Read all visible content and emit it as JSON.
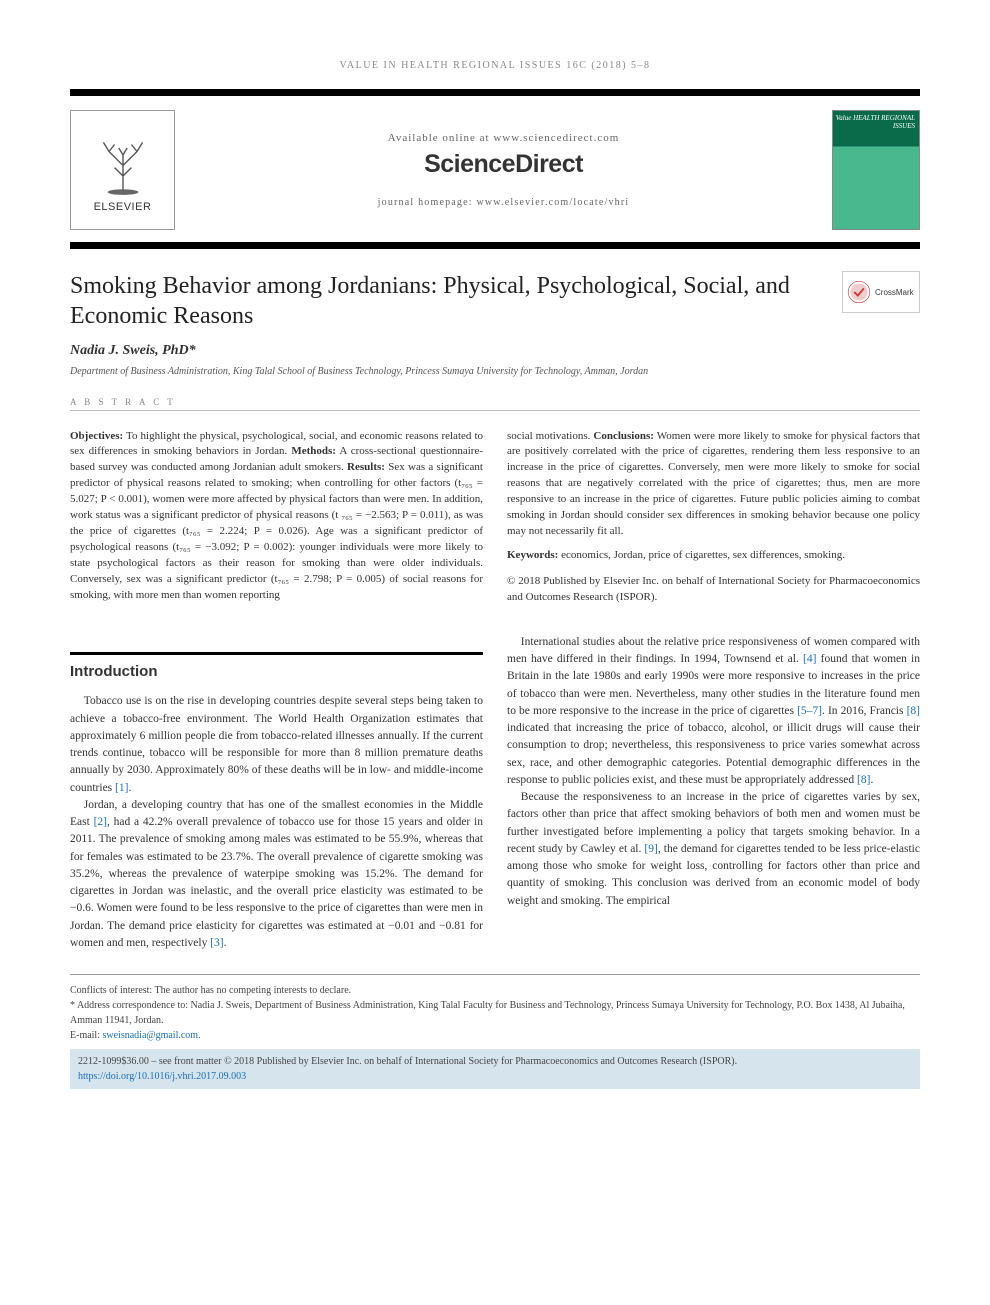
{
  "running_header": "VALUE IN HEALTH REGIONAL ISSUES 16C (2018) 5–8",
  "header": {
    "available_line": "Available online at www.sciencedirect.com",
    "brand": "ScienceDirect",
    "journal_line": "journal homepage: www.elsevier.com/locate/vhri",
    "elsevier_wordmark": "ELSEVIER",
    "cover_title": "Value\nHEALTH\nREGIONAL ISSUES"
  },
  "article": {
    "title": "Smoking Behavior among Jordanians: Physical, Psychological, Social, and Economic Reasons",
    "author": "Nadia J. Sweis, PhD*",
    "affiliation": "Department of Business Administration, King Talal School of Business Technology, Princess Sumaya University for Technology, Amman, Jordan",
    "crossmark_label": "CrossMark"
  },
  "abstract": {
    "label": "A B S T R A C T",
    "left": "Objectives: To highlight the physical, psychological, social, and economic reasons related to sex differences in smoking behaviors in Jordan. Methods: A cross-sectional questionnaire-based survey was conducted among Jordanian adult smokers. Results: Sex was a significant predictor of physical reasons related to smoking; when controlling for other factors (t₇₆₅ = 5.027; P < 0.001), women were more affected by physical factors than were men. In addition, work status was a significant predictor of physical reasons (t ₇₆₅ = −2.563; P = 0.011), as was the price of cigarettes (t₇₆₅ = 2.224; P = 0.026). Age was a significant predictor of psychological reasons (t₇₆₅ = −3.092; P = 0.002): younger individuals were more likely to state psychological factors as their reason for smoking than were older individuals. Conversely, sex was a significant predictor (t₇₆₅ = 2.798; P = 0.005) of social reasons for smoking, with more men than women reporting",
    "right_p1": "social motivations. Conclusions: Women were more likely to smoke for physical factors that are positively correlated with the price of cigarettes, rendering them less responsive to an increase in the price of cigarettes. Conversely, men were more likely to smoke for social reasons that are negatively correlated with the price of cigarettes; thus, men are more responsive to an increase in the price of cigarettes. Future public policies aiming to combat smoking in Jordan should consider sex differences in smoking behavior because one policy may not necessarily fit all.",
    "keywords": "Keywords: economics, Jordan, price of cigarettes, sex differences, smoking.",
    "copyright": "© 2018 Published by Elsevier Inc. on behalf of International Society for Pharmacoeconomics and Outcomes Research (ISPOR)."
  },
  "intro": {
    "heading": "Introduction",
    "left_p1": "Tobacco use is on the rise in developing countries despite several steps being taken to achieve a tobacco-free environment. The World Health Organization estimates that approximately 6 million people die from tobacco-related illnesses annually. If the current trends continue, tobacco will be responsible for more than 8 million premature deaths annually by 2030. Approximately 80% of these deaths will be in low- and middle-income countries [1].",
    "left_p2": "Jordan, a developing country that has one of the smallest economies in the Middle East [2], had a 42.2% overall prevalence of tobacco use for those 15 years and older in 2011. The prevalence of smoking among males was estimated to be 55.9%, whereas that for females was estimated to be 23.7%. The overall prevalence of cigarette smoking was 35.2%, whereas the prevalence of waterpipe smoking was 15.2%. The demand for cigarettes in Jordan was inelastic, and the overall price elasticity was estimated to be −0.6. Women were found to be less responsive to the price of cigarettes than were men in Jordan. The demand price elasticity for cigarettes was estimated at −0.01 and −0.81 for women and men, respectively [3].",
    "right_p1": "International studies about the relative price responsiveness of women compared with men have differed in their findings. In 1994, Townsend et al. [4] found that women in Britain in the late 1980s and early 1990s were more responsive to increases in the price of tobacco than were men. Nevertheless, many other studies in the literature found men to be more responsive to the increase in the price of cigarettes [5–7]. In 2016, Francis [8] indicated that increasing the price of tobacco, alcohol, or illicit drugs will cause their consumption to drop; nevertheless, this responsiveness to price varies somewhat across sex, race, and other demographic categories. Potential demographic differences in the response to public policies exist, and these must be appropriately addressed [8].",
    "right_p2": "Because the responsiveness to an increase in the price of cigarettes varies by sex, factors other than price that affect smoking behaviors of both men and women must be further investigated before implementing a policy that targets smoking behavior. In a recent study by Cawley et al. [9], the demand for cigarettes tended to be less price-elastic among those who smoke for weight loss, controlling for factors other than price and quantity of smoking. This conclusion was derived from an economic model of body weight and smoking. The empirical"
  },
  "footer": {
    "conflicts": "Conflicts of interest: The author has no competing interests to declare.",
    "correspondence": "* Address correspondence to: Nadia J. Sweis, Department of Business Administration, King Talal Faculty for Business and Technology, Princess Sumaya University for Technology, P.O. Box 1438, Al Jubaiha, Amman 11941, Jordan.",
    "email_label": "E-mail:",
    "email": "sweisnadia@gmail.com.",
    "issn_line": "2212-1099$36.00 – see front matter © 2018 Published by Elsevier Inc. on behalf of International Society for Pharmacoeconomics and Outcomes Research (ISPOR).",
    "doi": "https://doi.org/10.1016/j.vhri.2017.09.003"
  },
  "colors": {
    "link": "#1a6fb5",
    "bar_bg": "#d6e4ee",
    "cover_top": "#0a6b4a",
    "cover_bottom": "#4ab88e"
  }
}
